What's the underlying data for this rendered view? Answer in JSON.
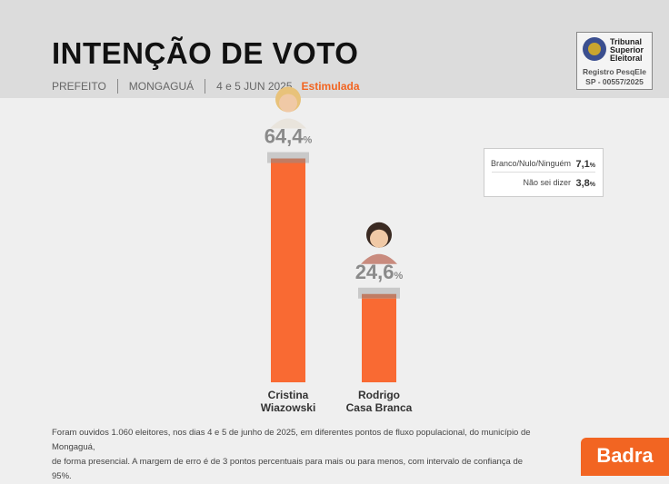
{
  "header": {
    "title": "INTENÇÃO DE VOTO",
    "office": "PREFEITO",
    "city": "MONGAGUÁ",
    "date": "4 e 5 JUN 2025",
    "type": "Estimulada"
  },
  "tse": {
    "line1": "Tribunal",
    "line2": "Superior",
    "line3": "Eleitoral",
    "registro": "Registro PesqEle",
    "numero": "SP - 00557/2025"
  },
  "chart_data": {
    "type": "bar",
    "categories": [
      "Cristina Wiazowski",
      "Rodrigo Casa Branca"
    ],
    "category_lines": [
      [
        "Cristina",
        "Wiazowski"
      ],
      [
        "Rodrigo",
        "Casa Branca"
      ]
    ],
    "values": [
      64.4,
      24.6
    ],
    "value_labels": [
      "64,4",
      "24,6"
    ],
    "unit": "%",
    "ylim": [
      0,
      100
    ],
    "colors": {
      "bar": "#f96a33",
      "cap": "#c9c9c9",
      "cap_inner": "#c07c63",
      "label": "#8a8a8a"
    },
    "other_answers": [
      {
        "label": "Branco/Nulo/Ninguém",
        "value": "7,1"
      },
      {
        "label": "Não sei dizer",
        "value": "3,8"
      }
    ]
  },
  "footnote": {
    "line1": "Foram ouvidos 1.060 eleitores, nos dias 4 e 5 de junho de 2025, em diferentes pontos de fluxo populacional, do município de Mongaguá,",
    "line2": "de forma presencial. A margem de erro é de 3 pontos percentuais para mais ou para menos, com intervalo de confiança de 95%."
  },
  "brand": "Badra"
}
